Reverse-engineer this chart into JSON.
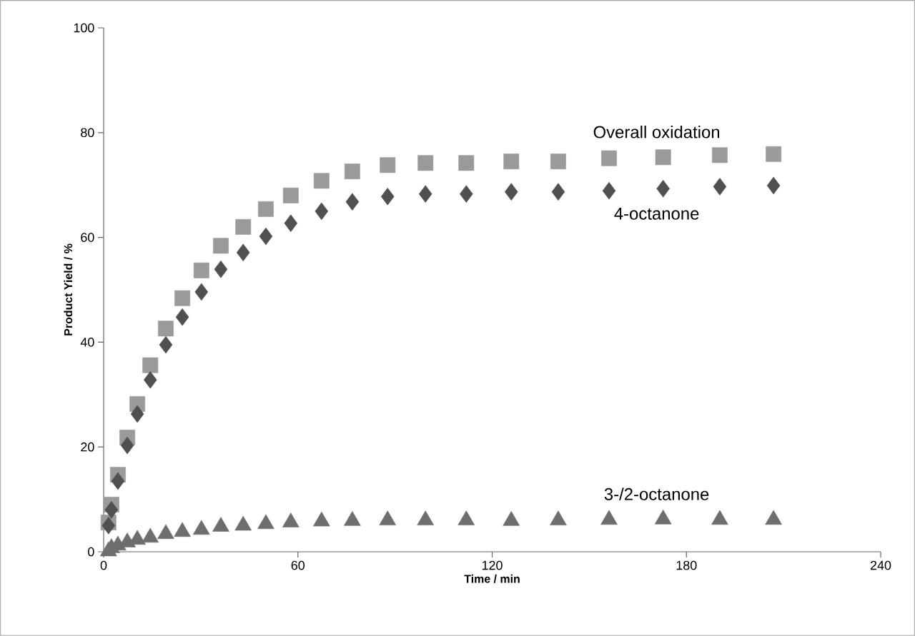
{
  "chart_data": {
    "type": "scatter",
    "xlabel": "Time / min",
    "ylabel": "Product Yield / %",
    "xlim": [
      0,
      240
    ],
    "xticks": [
      0,
      60,
      120,
      180,
      240
    ],
    "ylim": [
      0,
      100
    ],
    "yticks": [
      0,
      20,
      40,
      60,
      80,
      100
    ],
    "grid": false,
    "legend": false,
    "x": [
      1.5,
      2.4,
      4.4,
      7.3,
      10.4,
      14.4,
      19.2,
      24.3,
      30.2,
      36.2,
      43.1,
      50.1,
      57.8,
      67.3,
      76.8,
      87.7,
      99.4,
      112,
      125.9,
      140.4,
      156.1,
      172.8,
      190.3,
      206.9
    ],
    "series": [
      {
        "name": "Overall oxidation",
        "color": "#9a9a9a",
        "marker": "square",
        "values": [
          5.6,
          9.0,
          14.7,
          21.8,
          28.2,
          35.6,
          42.6,
          48.4,
          53.7,
          58.4,
          62.0,
          65.4,
          68.0,
          70.8,
          72.6,
          73.8,
          74.2,
          74.2,
          74.5,
          74.5,
          75.1,
          75.3,
          75.7,
          75.9
        ]
      },
      {
        "name": "4-octanone",
        "color": "#505050",
        "marker": "diamond",
        "values": [
          5.0,
          8.0,
          13.5,
          20.3,
          26.3,
          32.8,
          39.5,
          44.8,
          49.6,
          53.9,
          57.1,
          60.2,
          62.7,
          65.0,
          66.8,
          67.8,
          68.3,
          68.3,
          68.7,
          68.7,
          68.9,
          69.3,
          69.7,
          69.9
        ]
      },
      {
        "name": "3-/2-octanone",
        "color": "#6e6e6e",
        "marker": "triangle",
        "values": [
          0.1,
          0.7,
          1.2,
          1.8,
          2.3,
          2.7,
          3.4,
          3.8,
          4.2,
          4.8,
          5.0,
          5.3,
          5.6,
          5.8,
          5.9,
          6.0,
          6.0,
          6.0,
          5.9,
          6.0,
          6.1,
          6.2,
          6.1,
          6.1
        ]
      }
    ]
  }
}
